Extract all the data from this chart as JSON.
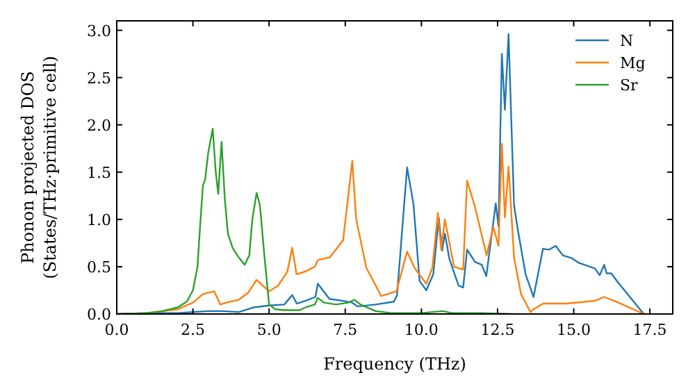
{
  "chart_data": {
    "type": "line",
    "xlabel": "Frequency (THz)",
    "ylabel": "Phonon projected DOS\n(States/THz·primitive cell)",
    "xlim": [
      0,
      18.25
    ],
    "ylim": [
      0,
      3.1
    ],
    "xticks": [
      {
        "value": 0,
        "label": "0.0"
      },
      {
        "value": 2.5,
        "label": "2.5"
      },
      {
        "value": 5,
        "label": "5.0"
      },
      {
        "value": 7.5,
        "label": "7.5"
      },
      {
        "value": 10,
        "label": "10.0"
      },
      {
        "value": 12.5,
        "label": "12.5"
      },
      {
        "value": 15,
        "label": "15.0"
      },
      {
        "value": 17.5,
        "label": "17.5"
      }
    ],
    "yticks": [
      {
        "value": 0,
        "label": "0.0"
      },
      {
        "value": 0.5,
        "label": "0.5"
      },
      {
        "value": 1,
        "label": "1.0"
      },
      {
        "value": 1.5,
        "label": "1.5"
      },
      {
        "value": 2,
        "label": "2.0"
      },
      {
        "value": 2.5,
        "label": "2.5"
      },
      {
        "value": 3,
        "label": "3.0"
      }
    ],
    "grid": false,
    "legend": "top right",
    "line_style": "solid",
    "series": [
      {
        "name": "N",
        "color": "#1f77b4",
        "x": [
          0,
          1,
          2,
          2.5,
          3,
          3.5,
          4,
          4.5,
          5,
          5.5,
          5.76,
          5.91,
          6.2,
          6.52,
          6.6,
          6.98,
          7.4,
          7.73,
          7.9,
          8.5,
          9.1,
          9.2,
          9.53,
          9.74,
          9.94,
          10.16,
          10.39,
          10.57,
          10.68,
          10.77,
          10.92,
          11.22,
          11.37,
          11.5,
          11.76,
          11.98,
          12.13,
          12.44,
          12.53,
          12.64,
          12.74,
          12.86,
          13.04,
          13.17,
          13.42,
          13.68,
          13.99,
          14.18,
          14.41,
          14.64,
          14.94,
          15.17,
          15.7,
          15.85,
          16,
          16.08,
          16.23,
          16.46,
          17.3
        ],
        "values": [
          0,
          0.01,
          0.01,
          0.02,
          0.03,
          0.03,
          0.02,
          0.07,
          0.09,
          0.1,
          0.2,
          0.11,
          0.14,
          0.18,
          0.32,
          0.16,
          0.14,
          0.12,
          0.08,
          0.1,
          0.13,
          0.2,
          1.55,
          1.16,
          0.35,
          0.25,
          0.42,
          1.02,
          0.67,
          0.85,
          0.58,
          0.3,
          0.28,
          0.68,
          0.55,
          0.52,
          0.4,
          1.17,
          0.93,
          2.75,
          2.16,
          2.96,
          1.15,
          0.88,
          0.42,
          0.18,
          0.69,
          0.68,
          0.72,
          0.62,
          0.59,
          0.54,
          0.48,
          0.41,
          0.52,
          0.43,
          0.43,
          0.33,
          0
        ]
      },
      {
        "name": "Mg",
        "color": "#ff7f0e",
        "x": [
          0,
          1,
          2,
          2.5,
          2.83,
          3.2,
          3.4,
          3.6,
          4,
          4.3,
          4.59,
          5,
          5.3,
          5.6,
          5.76,
          5.9,
          6.2,
          6.5,
          6.6,
          7,
          7.43,
          7.73,
          7.86,
          8.19,
          8.68,
          9.18,
          9.53,
          9.77,
          10.16,
          10.36,
          10.54,
          10.65,
          10.77,
          11.07,
          11.37,
          11.5,
          11.76,
          12.14,
          12.36,
          12.53,
          12.64,
          12.74,
          12.86,
          13.04,
          13.27,
          13.58,
          13.68,
          14,
          14.76,
          15.7,
          16,
          16.4,
          17.3
        ],
        "values": [
          0,
          0.01,
          0.05,
          0.12,
          0.21,
          0.24,
          0.1,
          0.12,
          0.15,
          0.22,
          0.36,
          0.24,
          0.3,
          0.45,
          0.7,
          0.42,
          0.45,
          0.5,
          0.57,
          0.6,
          0.78,
          1.62,
          1,
          0.49,
          0.19,
          0.24,
          0.66,
          0.49,
          0.32,
          0.49,
          1.07,
          0.68,
          1,
          0.5,
          0.47,
          1.41,
          1.13,
          0.62,
          0.92,
          0.72,
          1.8,
          1.02,
          1.56,
          0.6,
          0.21,
          0.02,
          0.05,
          0.11,
          0.11,
          0.14,
          0.18,
          0.13,
          0
        ]
      },
      {
        "name": "Sr",
        "color": "#2ca02c",
        "x": [
          0,
          1,
          1.5,
          2,
          2.3,
          2.5,
          2.65,
          2.75,
          2.83,
          2.9,
          3,
          3.15,
          3.25,
          3.33,
          3.44,
          3.55,
          3.65,
          3.8,
          4,
          4.2,
          4.35,
          4.45,
          4.59,
          4.7,
          4.85,
          5,
          5.2,
          5.5,
          6,
          6.2,
          6.5,
          6.6,
          6.8,
          7.2,
          7.6,
          7.8,
          8,
          8.5,
          9,
          10,
          10.7,
          11,
          12,
          13
        ],
        "values": [
          0,
          0.01,
          0.03,
          0.07,
          0.13,
          0.25,
          0.5,
          1,
          1.36,
          1.42,
          1.7,
          1.96,
          1.5,
          1.27,
          1.82,
          1.2,
          0.85,
          0.7,
          0.6,
          0.52,
          0.62,
          1,
          1.28,
          1.15,
          0.6,
          0.1,
          0.05,
          0.04,
          0.04,
          0.07,
          0.1,
          0.17,
          0.12,
          0.1,
          0.12,
          0.15,
          0.1,
          0.03,
          0.01,
          0.01,
          0.03,
          0.01,
          0.01,
          0
        ]
      }
    ]
  }
}
